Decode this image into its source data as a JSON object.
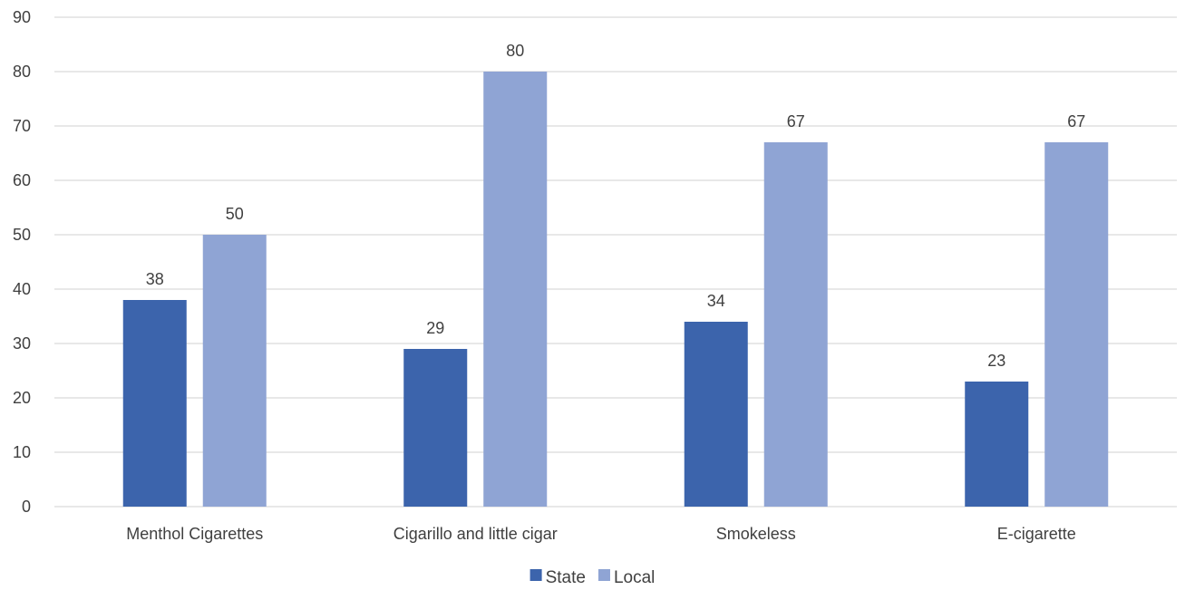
{
  "chart_data": {
    "type": "bar",
    "categories": [
      "Menthol Cigarettes",
      "Cigarillo and little cigar",
      "Smokeless",
      "E-cigarette"
    ],
    "series": [
      {
        "name": "State",
        "values": [
          38,
          29,
          34,
          23
        ],
        "color": "#3c64ac"
      },
      {
        "name": "Local",
        "values": [
          50,
          80,
          67,
          67
        ],
        "color": "#8fa4d4"
      }
    ],
    "ylim": [
      0,
      90
    ],
    "yticks": [
      0,
      10,
      20,
      30,
      40,
      50,
      60,
      70,
      80,
      90
    ],
    "grid": true,
    "legend_position": "bottom",
    "data_labels": true
  }
}
